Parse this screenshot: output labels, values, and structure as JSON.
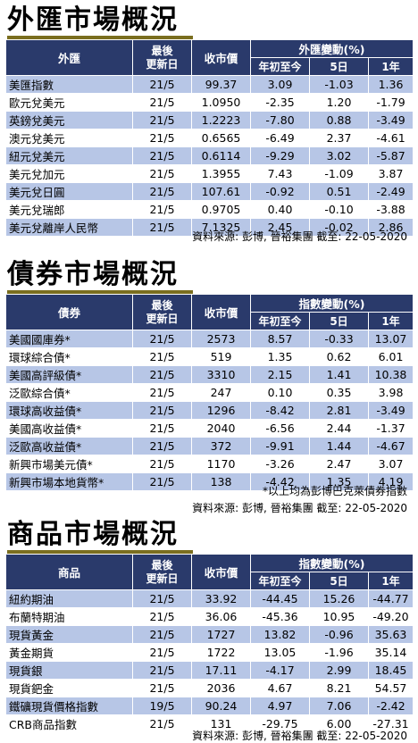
{
  "fx": {
    "title": "外匯市場概況",
    "headers": {
      "name": "外匯",
      "date": "最後\n更新日",
      "close": "收市價",
      "change_group": "外匯變動(%)",
      "ytd": "年初至今",
      "d5": "5日",
      "y1": "1年"
    },
    "rows": [
      [
        "美匯指數",
        "21/5",
        "99.37",
        "3.09",
        "-1.03",
        "1.36"
      ],
      [
        "歐元兌美元",
        "21/5",
        "1.0950",
        "-2.35",
        "1.20",
        "-1.79"
      ],
      [
        "英鎊兌美元",
        "21/5",
        "1.2223",
        "-7.80",
        "0.88",
        "-3.49"
      ],
      [
        "澳元兌美元",
        "21/5",
        "0.6565",
        "-6.49",
        "2.37",
        "-4.61"
      ],
      [
        "紐元兌美元",
        "21/5",
        "0.6114",
        "-9.29",
        "3.02",
        "-5.87"
      ],
      [
        "美元兌加元",
        "21/5",
        "1.3955",
        "7.43",
        "-1.09",
        "3.87"
      ],
      [
        "美元兌日圓",
        "21/5",
        "107.61",
        "-0.92",
        "0.51",
        "-2.49"
      ],
      [
        "美元兌瑞郎",
        "21/5",
        "0.9705",
        "0.40",
        "-0.10",
        "-3.88"
      ],
      [
        "美元兌離岸人民幣",
        "21/5",
        "7.1325",
        "2.45",
        "-0.02",
        "2.86"
      ]
    ],
    "source": "資料來源: 彭博, 晉裕集團 截至: 22-05-2020"
  },
  "bonds": {
    "title": "債券市場概況",
    "headers": {
      "name": "債券",
      "date": "最後\n更新日",
      "close": "收市價",
      "change_group": "指數變動(%)",
      "ytd": "年初至今",
      "d5": "5日",
      "y1": "1年"
    },
    "rows": [
      [
        "美國國庫券*",
        "21/5",
        "2573",
        "8.57",
        "-0.33",
        "13.07"
      ],
      [
        "環球綜合債*",
        "21/5",
        "519",
        "1.35",
        "0.62",
        "6.01"
      ],
      [
        "美國高評級債*",
        "21/5",
        "3310",
        "2.15",
        "1.41",
        "10.38"
      ],
      [
        "泛歐綜合債*",
        "21/5",
        "247",
        "0.10",
        "0.35",
        "3.98"
      ],
      [
        "環球高收益債*",
        "21/5",
        "1296",
        "-8.42",
        "2.81",
        "-3.49"
      ],
      [
        "美國高收益債*",
        "21/5",
        "2040",
        "-6.56",
        "2.44",
        "-1.37"
      ],
      [
        "泛歐高收益債*",
        "21/5",
        "372",
        "-9.91",
        "1.44",
        "-4.67"
      ],
      [
        "新興市場美元債*",
        "21/5",
        "1170",
        "-3.26",
        "2.47",
        "3.07"
      ],
      [
        "新興市場本地貨幣*",
        "21/5",
        "138",
        "-4.42",
        "1.35",
        "4.19"
      ]
    ],
    "footnote": "*以上均為彭博巴克萊債券指數",
    "source": "資料來源: 彭博, 晉裕集團 截至: 22-05-2020"
  },
  "commodities": {
    "title": "商品市場概況",
    "headers": {
      "name": "商品",
      "date": "最後\n更新日",
      "close": "收市價",
      "change_group": "指數變動(%)",
      "ytd": "年初至今",
      "d5": "5日",
      "y1": "1年"
    },
    "rows": [
      [
        "紐約期油",
        "21/5",
        "33.92",
        "-44.45",
        "15.26",
        "-44.77"
      ],
      [
        "布蘭特期油",
        "21/5",
        "36.06",
        "-45.36",
        "10.95",
        "-49.20"
      ],
      [
        "現貨黃金",
        "21/5",
        "1727",
        "13.82",
        "-0.96",
        "35.63"
      ],
      [
        "黃金期貨",
        "21/5",
        "1722",
        "13.05",
        "-1.96",
        "35.14"
      ],
      [
        "現貨銀",
        "21/5",
        "17.11",
        "-4.17",
        "2.99",
        "18.45"
      ],
      [
        "現貨鈀金",
        "21/5",
        "2036",
        "4.67",
        "8.21",
        "54.57"
      ],
      [
        "鐵礦現貨價格指數",
        "19/5",
        "90.24",
        "4.97",
        "7.06",
        "-2.42"
      ],
      [
        "CRB商品指數",
        "21/5",
        "131",
        "-29.75",
        "6.00",
        "-27.31"
      ]
    ],
    "source": "資料來源: 彭博, 晉裕集團 截至: 22-05-2020"
  }
}
